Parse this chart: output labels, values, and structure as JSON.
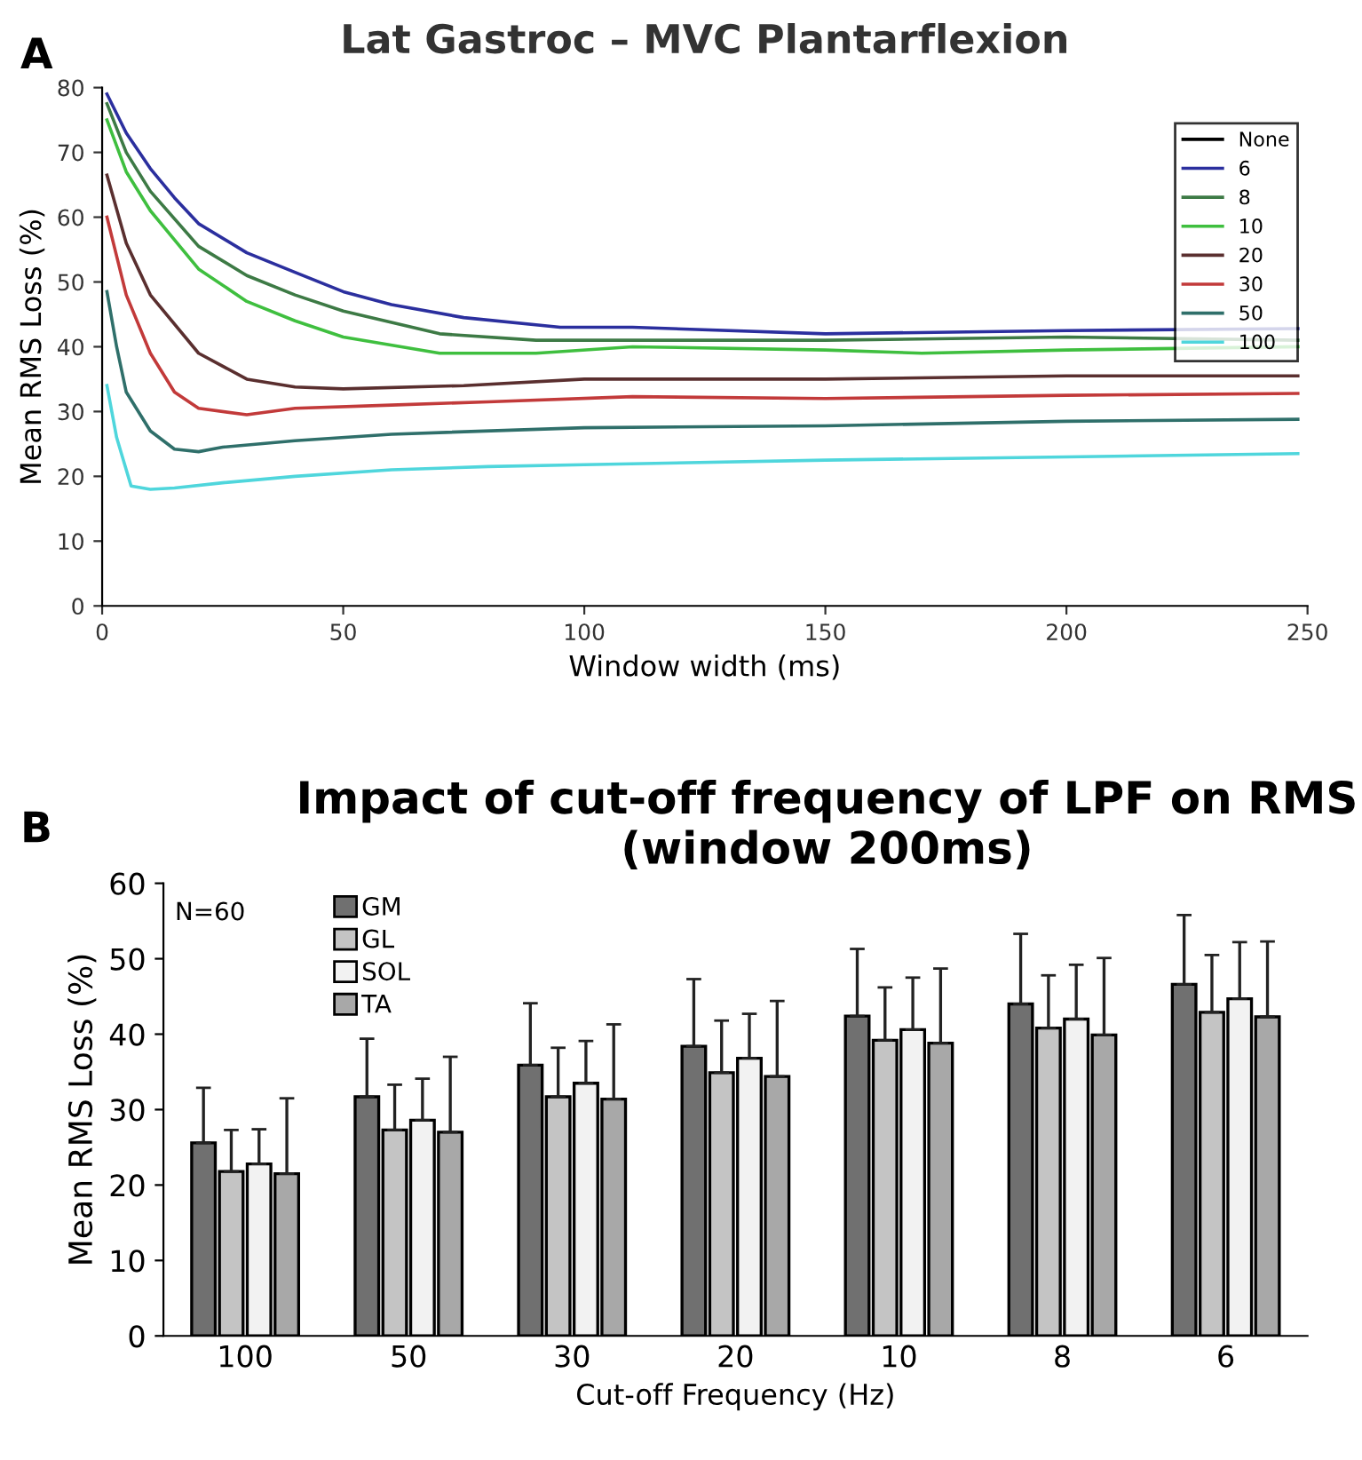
{
  "chart_data": [
    {
      "type": "line",
      "title": "Lat Gastroc – MVC Plantarflexion",
      "xlabel": "Window width (ms)",
      "ylabel": "Mean RMS Loss (%)",
      "annotations": [
        "A"
      ],
      "xlim": [
        0,
        250
      ],
      "xticks": [
        0,
        50,
        100,
        150,
        200,
        250
      ],
      "ylim": [
        0,
        80
      ],
      "yticks": [
        0,
        10,
        20,
        30,
        40,
        50,
        60,
        70,
        80
      ],
      "legend": "top right",
      "grid": false,
      "series": [
        {
          "name": "None",
          "color": "#000000"
        },
        {
          "name": "6",
          "color": "#2b2f9e",
          "x": [
            1,
            5,
            10,
            15,
            20,
            30,
            40,
            50,
            60,
            75,
            95,
            110,
            150,
            200,
            248
          ],
          "values": [
            79,
            73,
            67.5,
            63,
            59,
            54.5,
            51.5,
            48.5,
            46.5,
            44.5,
            43,
            43,
            42,
            42.5,
            42.8
          ]
        },
        {
          "name": "8",
          "color": "#3d7a45",
          "x": [
            1,
            5,
            10,
            20,
            30,
            40,
            50,
            70,
            90,
            105,
            150,
            200,
            248
          ],
          "values": [
            77.5,
            70,
            64,
            55.5,
            51,
            48,
            45.5,
            42,
            41,
            41,
            41,
            41.5,
            41
          ]
        },
        {
          "name": "10",
          "color": "#3fbf3f",
          "x": [
            1,
            5,
            10,
            20,
            30,
            40,
            50,
            70,
            90,
            110,
            150,
            170,
            200,
            248
          ],
          "values": [
            75,
            67,
            61,
            52,
            47,
            44,
            41.5,
            39,
            39,
            40,
            39.5,
            39,
            39.5,
            40
          ]
        },
        {
          "name": "20",
          "color": "#5a2f2f",
          "x": [
            1,
            5,
            10,
            20,
            30,
            40,
            50,
            75,
            100,
            150,
            200,
            248
          ],
          "values": [
            66.5,
            56,
            48,
            39,
            35,
            33.8,
            33.5,
            34,
            35,
            35,
            35.5,
            35.5
          ]
        },
        {
          "name": "30",
          "color": "#c23a3a",
          "x": [
            1,
            5,
            10,
            15,
            20,
            30,
            40,
            60,
            80,
            110,
            150,
            200,
            248
          ],
          "values": [
            60,
            48,
            39,
            33,
            30.5,
            29.5,
            30.5,
            31,
            31.5,
            32.3,
            32,
            32.5,
            32.8
          ]
        },
        {
          "name": "50",
          "color": "#2f6f6a",
          "x": [
            1,
            3,
            5,
            10,
            15,
            20,
            25,
            40,
            60,
            100,
            150,
            200,
            248
          ],
          "values": [
            48.5,
            40,
            33,
            27,
            24.2,
            23.8,
            24.5,
            25.5,
            26.5,
            27.5,
            27.8,
            28.5,
            28.8
          ]
        },
        {
          "name": "100",
          "color": "#4fd6dc",
          "x": [
            1,
            3,
            6,
            10,
            15,
            25,
            40,
            60,
            80,
            100,
            150,
            200,
            248
          ],
          "values": [
            34,
            26,
            18.5,
            18,
            18.2,
            19,
            20,
            21,
            21.5,
            21.8,
            22.5,
            23,
            23.5
          ]
        }
      ]
    },
    {
      "type": "bar",
      "title": "Impact of cut-off frequency of LPF on RMS\n(window 200ms)",
      "xlabel": "Cut-off Frequency (Hz)",
      "ylabel": "Mean RMS Loss (%)",
      "annotations": [
        "B",
        "N=60"
      ],
      "categories": [
        "100",
        "50",
        "30",
        "20",
        "10",
        "8",
        "6"
      ],
      "ylim": [
        0,
        60
      ],
      "yticks": [
        0,
        10,
        20,
        30,
        40,
        50,
        60
      ],
      "legend": "top left",
      "grid": false,
      "series": [
        {
          "name": "GM",
          "color": "#707070",
          "values": [
            25.6,
            31.7,
            35.9,
            38.4,
            42.4,
            44,
            46.6
          ],
          "errors": [
            [
              25.6,
              32.9
            ],
            [
              31.7,
              39.4
            ],
            [
              35.9,
              44.1
            ],
            [
              38.4,
              47.3
            ],
            [
              42.4,
              51.3
            ],
            [
              44,
              53.3
            ],
            [
              46.6,
              55.8
            ]
          ]
        },
        {
          "name": "GL",
          "color": "#c4c4c4",
          "values": [
            21.8,
            27.3,
            31.7,
            34.9,
            39.2,
            40.8,
            42.9
          ],
          "errors": [
            [
              21.8,
              27.3
            ],
            [
              27.3,
              33.3
            ],
            [
              31.7,
              38.2
            ],
            [
              34.9,
              41.8
            ],
            [
              39.2,
              46.2
            ],
            [
              40.8,
              47.8
            ],
            [
              42.9,
              50.5
            ]
          ]
        },
        {
          "name": "SOL",
          "color": "#f2f2f2",
          "values": [
            22.8,
            28.6,
            33.5,
            36.8,
            40.6,
            42,
            44.7
          ],
          "errors": [
            [
              22.8,
              27.4
            ],
            [
              28.6,
              34.1
            ],
            [
              33.5,
              39.1
            ],
            [
              36.8,
              42.7
            ],
            [
              40.6,
              47.5
            ],
            [
              42,
              49.2
            ],
            [
              44.7,
              52.2
            ]
          ]
        },
        {
          "name": "TA",
          "color": "#a8a8a8",
          "values": [
            21.5,
            27,
            31.4,
            34.4,
            38.8,
            39.9,
            42.3
          ],
          "errors": [
            [
              21.5,
              31.5
            ],
            [
              27,
              37
            ],
            [
              31.4,
              41.3
            ],
            [
              34.4,
              44.4
            ],
            [
              38.8,
              48.7
            ],
            [
              39.9,
              50.1
            ],
            [
              42.3,
              52.3
            ]
          ]
        }
      ]
    }
  ]
}
